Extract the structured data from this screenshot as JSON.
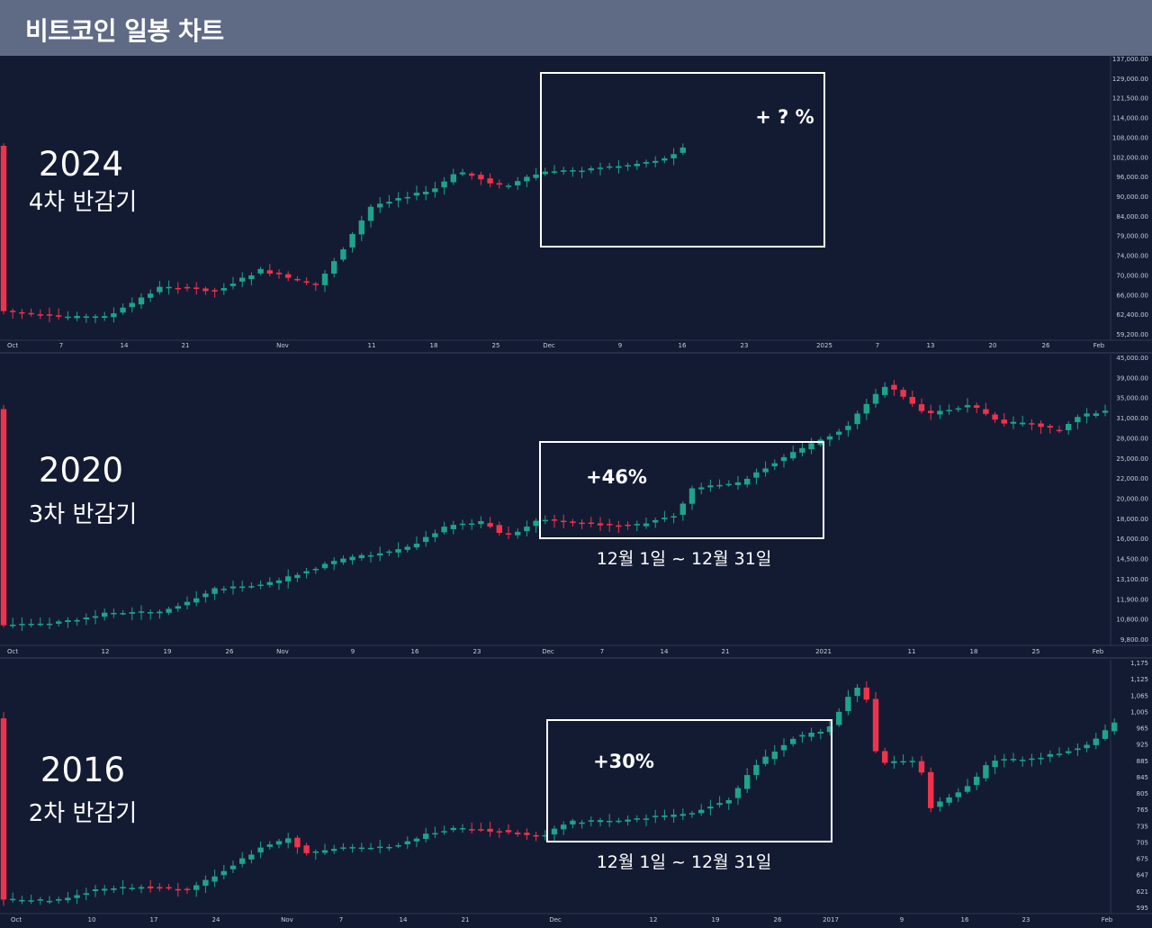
{
  "header": {
    "title": "비트코인 일봉 차트"
  },
  "colors": {
    "up": "#1fa38a",
    "down": "#f0334b",
    "background": "#131b33",
    "header": "#5f6a85",
    "text": "#ffffff",
    "axis_text": "#c8ccd6",
    "divider": "#2e3650"
  },
  "chart_data": [
    {
      "type": "candlestick",
      "year_label": "2024",
      "subtitle": "4차 반감기",
      "annotation": "+ ? %",
      "range_label": "",
      "x_ticks": [
        "Oct",
        "7",
        "14",
        "21",
        "Nov",
        "11",
        "18",
        "25",
        "Dec",
        "9",
        "16",
        "23",
        "2025",
        "7",
        "13",
        "20",
        "26",
        "Feb"
      ],
      "y_ticks": [
        "137,000.00",
        "129,000.00",
        "121,500.00",
        "114,000.00",
        "108,000.00",
        "102,000.00",
        "96,000.00",
        "90,000.00",
        "84,000.00",
        "79,000.00",
        "74,000.00",
        "70,000.00",
        "66,000.00",
        "62,400.00",
        "59,200.00"
      ],
      "highlight": {
        "from": "Dec 1",
        "to": "Dec 31"
      }
    },
    {
      "type": "candlestick",
      "year_label": "2020",
      "subtitle": "3차 반감기",
      "annotation": "+46%",
      "range_label": "12월 1일 ~ 12월 31일",
      "x_ticks": [
        "Oct",
        "12",
        "19",
        "26",
        "Nov",
        "9",
        "16",
        "23",
        "Dec",
        "7",
        "14",
        "21",
        "2021",
        "11",
        "18",
        "25",
        "Feb"
      ],
      "y_ticks": [
        "45,000.00",
        "39,000.00",
        "35,000.00",
        "31,000.00",
        "28,000.00",
        "25,000.00",
        "22,000.00",
        "20,000.00",
        "18,000.00",
        "16,000.00",
        "14,500.00",
        "13,100.00",
        "11,900.00",
        "10,800.00",
        "9,800.00"
      ],
      "highlight": {
        "from": "Dec 1",
        "to": "Dec 31"
      }
    },
    {
      "type": "candlestick",
      "year_label": "2016",
      "subtitle": "2차 반감기",
      "annotation": "+30%",
      "range_label": "12월 1일 ~ 12월 31일",
      "x_ticks": [
        "Oct",
        "10",
        "17",
        "24",
        "Nov",
        "7",
        "14",
        "21",
        "Dec",
        "12",
        "19",
        "26",
        "2017",
        "9",
        "16",
        "23",
        "Feb"
      ],
      "y_ticks": [
        "1,175",
        "1,125",
        "1,065",
        "1,005",
        "965",
        "925",
        "885",
        "845",
        "805",
        "765",
        "735",
        "705",
        "675",
        "647",
        "621",
        "595"
      ],
      "highlight": {
        "from": "Dec 1",
        "to": "Dec 31"
      }
    }
  ]
}
